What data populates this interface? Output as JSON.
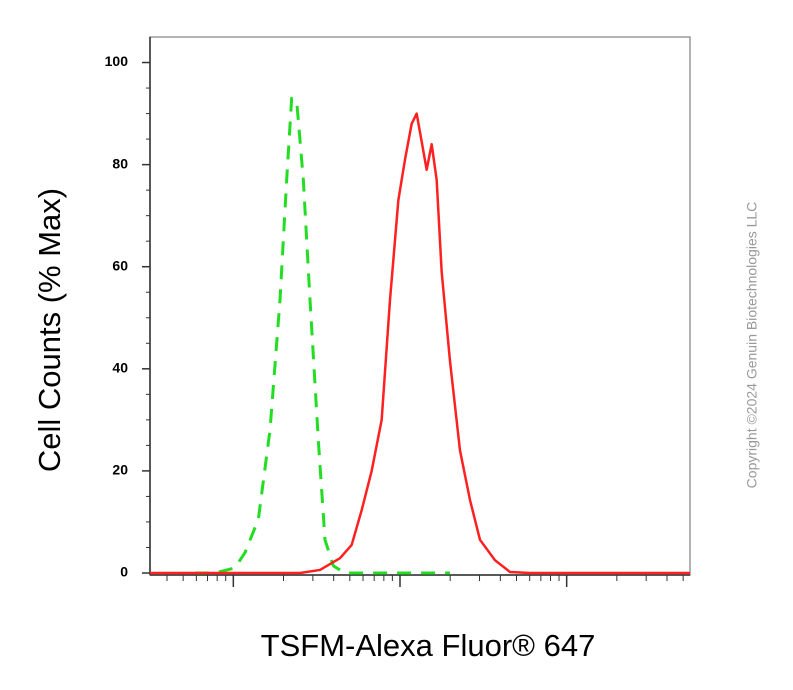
{
  "chart_data": {
    "type": "line",
    "ylabel": "Cell Counts (% Max)",
    "xlabel": "TSFM-Alexa Fluor® 647",
    "watermark": "Copyright ©2024 Genuin Biotechnologies LLC",
    "xscale": "log",
    "xlim": [
      0.5,
      3.74
    ],
    "xticks": [
      1,
      2,
      3
    ],
    "ylim": [
      0,
      105
    ],
    "yticks": [
      0,
      20,
      40,
      60,
      80,
      100
    ],
    "series": [
      {
        "color": "#22dd22",
        "dash": true,
        "x": [
          0.77,
          0.89,
          1.01,
          1.07,
          1.15,
          1.22,
          1.28,
          1.32,
          1.35,
          1.38,
          1.42,
          1.46,
          1.51,
          1.55,
          1.6,
          1.67,
          2.0,
          2.3
        ],
        "values": [
          0,
          0,
          1,
          4,
          10.5,
          28,
          53.5,
          77,
          93,
          92.5,
          77,
          53.5,
          26,
          6.5,
          1.4,
          0,
          0,
          0
        ]
      },
      {
        "color": "#ff2020",
        "dash": false,
        "x": [
          0.5,
          1.4,
          1.52,
          1.64,
          1.71,
          1.77,
          1.83,
          1.89,
          1.94,
          1.99,
          2.03,
          2.07,
          2.1,
          2.13,
          2.16,
          2.19,
          2.22,
          2.25,
          2.3,
          2.36,
          2.42,
          2.48,
          2.57,
          2.66,
          2.78,
          3.74
        ],
        "values": [
          0,
          0,
          0.6,
          2.9,
          5.5,
          12.3,
          20,
          30,
          53.5,
          73,
          81,
          88,
          90,
          84.5,
          79,
          84,
          77,
          59,
          41.5,
          24,
          14.3,
          6.5,
          2.5,
          0.2,
          0,
          0
        ]
      }
    ]
  }
}
